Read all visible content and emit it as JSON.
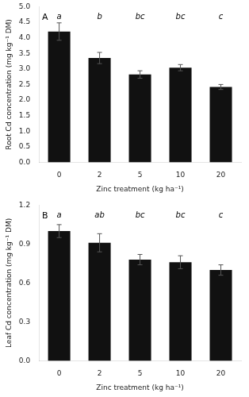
{
  "chart_data": [
    {
      "type": "bar",
      "categories": [
        "0",
        "2",
        "5",
        "10",
        "20"
      ],
      "values": [
        4.2,
        3.35,
        2.82,
        3.04,
        2.42
      ],
      "errors": [
        0.28,
        0.18,
        0.12,
        0.1,
        0.08
      ],
      "color": "#111111",
      "xlabel": "Zinc treatment (kg ha⁻¹)",
      "ylabel": "Root Cd concentration (mg kg⁻¹ DM)",
      "ylim": [
        0.0,
        5.0
      ],
      "yticks": [
        {
          "value": 0.0,
          "label": "0.0"
        },
        0.5,
        {
          "value": 1.0,
          "label": "1.0"
        },
        1.5,
        {
          "value": 2.0,
          "label": "2.0"
        },
        2.5,
        {
          "value": 3.0,
          "label": "3.0"
        },
        3.5,
        {
          "value": 4.0,
          "label": "4.0"
        },
        4.5,
        {
          "value": 5.0,
          "label": "5.0"
        }
      ],
      "grid": false,
      "annotations": [
        {
          "text": "A"
        },
        {
          "text": "a",
          "category": "0"
        },
        {
          "text": "b",
          "category": "2"
        },
        {
          "text": "bc",
          "category": "5"
        },
        {
          "text": "bc",
          "category": "10"
        },
        {
          "text": "c",
          "category": "20"
        }
      ]
    },
    {
      "type": "bar",
      "categories": [
        "0",
        "2",
        "5",
        "10",
        "20"
      ],
      "values": [
        1.0,
        0.91,
        0.78,
        0.76,
        0.7
      ],
      "errors": [
        0.05,
        0.07,
        0.04,
        0.05,
        0.04
      ],
      "color": "#111111",
      "xlabel": "Zinc treatment (kg ha⁻¹)",
      "ylabel": "Leaf Cd concentration (mg kg⁻¹ DM)",
      "ylim": [
        0.0,
        1.2
      ],
      "yticks": [
        {
          "value": 0.0,
          "label": "0.0"
        },
        0.3,
        0.6,
        0.9,
        1.2
      ],
      "grid": false,
      "annotations": [
        {
          "text": "B"
        },
        {
          "text": "a",
          "category": "0"
        },
        {
          "text": "ab",
          "category": "2"
        },
        {
          "text": "bc",
          "category": "5"
        },
        {
          "text": "bc",
          "category": "10"
        },
        {
          "text": "c",
          "category": "20"
        }
      ]
    }
  ]
}
